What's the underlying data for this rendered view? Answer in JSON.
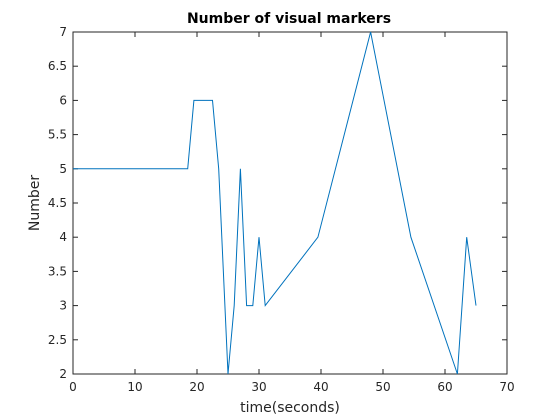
{
  "chart_data": {
    "type": "line",
    "title": "Number of visual markers",
    "xlabel": "time(seconds)",
    "ylabel": "Number",
    "xlim": [
      0,
      70
    ],
    "ylim": [
      2,
      7
    ],
    "xticks": [
      0,
      10,
      20,
      30,
      40,
      50,
      60,
      70
    ],
    "yticks": [
      2,
      2.5,
      3,
      3.5,
      4,
      4.5,
      5,
      5.5,
      6,
      6.5,
      7
    ],
    "grid": false,
    "series_color": "#0072bd",
    "series": [
      {
        "x": [
          0,
          18.5,
          19.5,
          22.5,
          23.5,
          25,
          26,
          27,
          28,
          29,
          30,
          31,
          39.5,
          48,
          54.5,
          62,
          63.5,
          65
        ],
        "y": [
          5,
          5,
          6,
          6,
          5,
          2,
          3,
          5,
          3,
          3,
          4,
          3,
          4,
          7,
          4,
          2,
          4,
          3
        ]
      }
    ]
  }
}
